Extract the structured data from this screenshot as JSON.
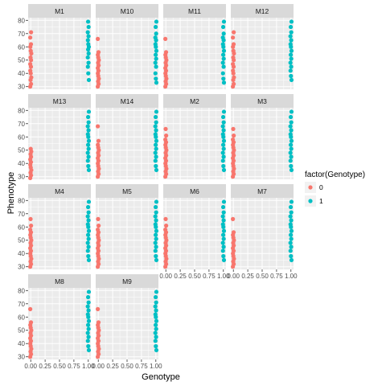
{
  "chart_data": {
    "type": "scatter",
    "title": "",
    "xlabel": "Genotype",
    "ylabel": "Phenotype",
    "xlim": [
      0,
      1
    ],
    "ylim": [
      28,
      82
    ],
    "x_ticks": [
      0,
      0.25,
      0.5,
      0.75,
      1
    ],
    "x_tick_labels": [
      "0.00",
      "0.25",
      "0.50",
      "0.75",
      "1.00"
    ],
    "y_ticks": [
      30,
      40,
      50,
      60,
      70,
      80
    ],
    "y_tick_labels": [
      "30",
      "40",
      "50",
      "60",
      "70",
      "80"
    ],
    "grid": true,
    "facet_by": "marker",
    "facet_columns": 4,
    "legend": {
      "title": "factor(Genotype)",
      "position": "right",
      "entries": [
        {
          "label": "0",
          "color": "#F8766D"
        },
        {
          "label": "1",
          "color": "#00BFC4"
        }
      ]
    },
    "colors": {
      "0": "#F8766D",
      "1": "#00BFC4"
    },
    "panels": [
      {
        "name": "M1",
        "g0": [
          30,
          32,
          35,
          37,
          40,
          42,
          45,
          47,
          50,
          52,
          55,
          57,
          60,
          62,
          67,
          71
        ],
        "g1": [
          35,
          40,
          45,
          48,
          52,
          55,
          58,
          60,
          62,
          65,
          68,
          71,
          75,
          79
        ]
      },
      {
        "name": "M10",
        "g0": [
          30,
          32,
          34,
          36,
          38,
          40,
          42,
          44,
          46,
          48,
          50,
          52,
          54,
          56,
          66
        ],
        "g1": [
          33,
          36,
          40,
          45,
          48,
          51,
          54,
          57,
          60,
          62,
          65,
          67,
          70,
          75,
          79
        ]
      },
      {
        "name": "M11",
        "g0": [
          30,
          32,
          34,
          36,
          38,
          40,
          42,
          44,
          46,
          48,
          50,
          52,
          54,
          56,
          66
        ],
        "g1": [
          33,
          36,
          40,
          45,
          48,
          51,
          54,
          57,
          60,
          62,
          65,
          67,
          70,
          75,
          79
        ]
      },
      {
        "name": "M12",
        "g0": [
          30,
          32,
          35,
          37,
          40,
          42,
          45,
          47,
          50,
          52,
          55,
          57,
          60,
          62,
          67,
          71
        ],
        "g1": [
          35,
          38,
          42,
          45,
          48,
          51,
          54,
          57,
          60,
          62,
          65,
          68,
          71,
          75,
          79
        ]
      },
      {
        "name": "M13",
        "g0": [
          29,
          31,
          33,
          35,
          37,
          39,
          41,
          43,
          45,
          47,
          49,
          51
        ],
        "g1": [
          35,
          38,
          42,
          45,
          48,
          51,
          54,
          57,
          60,
          62,
          65,
          68,
          71,
          75,
          79
        ]
      },
      {
        "name": "M14",
        "g0": [
          30,
          32,
          34,
          36,
          38,
          40,
          42,
          44,
          46,
          48,
          50,
          52,
          54,
          57,
          68
        ],
        "g1": [
          35,
          38,
          42,
          45,
          48,
          51,
          54,
          57,
          60,
          62,
          65,
          68,
          71,
          75,
          79
        ]
      },
      {
        "name": "M2",
        "g0": [
          30,
          32,
          34,
          36,
          38,
          40,
          42,
          44,
          46,
          48,
          50,
          52,
          54,
          56,
          58,
          61,
          66
        ],
        "g1": [
          35,
          38,
          42,
          45,
          48,
          51,
          54,
          57,
          60,
          62,
          65,
          68,
          71,
          75,
          79
        ]
      },
      {
        "name": "M3",
        "g0": [
          30,
          32,
          34,
          36,
          38,
          40,
          42,
          44,
          46,
          48,
          50,
          52,
          54,
          56,
          58,
          61,
          66
        ],
        "g1": [
          35,
          38,
          42,
          45,
          48,
          51,
          54,
          57,
          60,
          62,
          65,
          68,
          71,
          75,
          79
        ]
      },
      {
        "name": "M4",
        "g0": [
          30,
          32,
          34,
          36,
          38,
          40,
          42,
          44,
          46,
          48,
          50,
          52,
          54,
          56,
          58,
          61,
          66
        ],
        "g1": [
          35,
          38,
          42,
          45,
          48,
          51,
          54,
          57,
          60,
          62,
          65,
          68,
          71,
          75,
          79
        ]
      },
      {
        "name": "M5",
        "g0": [
          30,
          32,
          34,
          36,
          38,
          40,
          42,
          44,
          46,
          48,
          50,
          52,
          54,
          56,
          58,
          61,
          66
        ],
        "g1": [
          35,
          38,
          42,
          45,
          48,
          51,
          54,
          57,
          60,
          62,
          65,
          68,
          71,
          75,
          79
        ]
      },
      {
        "name": "M6",
        "g0": [
          30,
          32,
          34,
          36,
          38,
          40,
          42,
          44,
          46,
          48,
          50,
          52,
          54,
          56,
          58,
          61,
          66
        ],
        "g1": [
          35,
          38,
          42,
          45,
          48,
          51,
          54,
          57,
          60,
          62,
          65,
          68,
          71,
          75,
          79
        ]
      },
      {
        "name": "M7",
        "g0": [
          30,
          32,
          34,
          36,
          38,
          40,
          42,
          44,
          46,
          48,
          50,
          52,
          54,
          56,
          66
        ],
        "g1": [
          35,
          38,
          42,
          45,
          48,
          51,
          54,
          57,
          60,
          62,
          65,
          68,
          71,
          75,
          79
        ]
      },
      {
        "name": "M8",
        "g0": [
          30,
          32,
          34,
          36,
          38,
          40,
          42,
          44,
          46,
          48,
          50,
          52,
          54,
          56,
          66
        ],
        "g1": [
          35,
          38,
          42,
          45,
          48,
          51,
          54,
          57,
          60,
          62,
          65,
          68,
          71,
          75,
          79
        ]
      },
      {
        "name": "M9",
        "g0": [
          30,
          32,
          34,
          36,
          38,
          40,
          42,
          44,
          46,
          48,
          50,
          52,
          54,
          56,
          66
        ],
        "g1": [
          35,
          38,
          42,
          45,
          48,
          51,
          54,
          57,
          60,
          62,
          65,
          68,
          71,
          75,
          79
        ]
      }
    ]
  }
}
